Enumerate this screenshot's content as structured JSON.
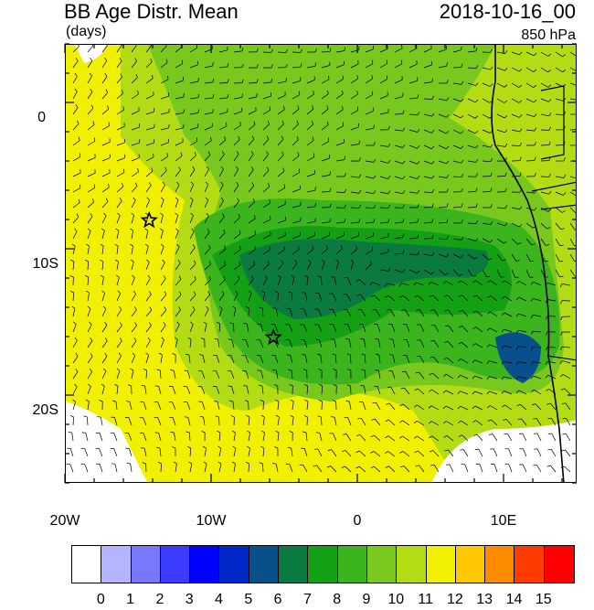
{
  "title": "BB Age Distr. Mean",
  "units": "(days)",
  "datetime": "2018-10-16_00",
  "level": "850 hPa",
  "lat_labels": [
    "0",
    "10S",
    "20S"
  ],
  "lon_labels": [
    "20W",
    "10W",
    "0",
    "10E"
  ],
  "colorbar": {
    "labels": [
      "0",
      "1",
      "2",
      "3",
      "4",
      "5",
      "6",
      "7",
      "8",
      "9",
      "10",
      "11",
      "12",
      "13",
      "14",
      "15"
    ],
    "colors": [
      "#ffffff",
      "#b4b4ff",
      "#7878ff",
      "#3c3cff",
      "#0000ff",
      "#0028c8",
      "#08508c",
      "#0a7a40",
      "#14a014",
      "#3cb41e",
      "#78c81e",
      "#b4dc14",
      "#f0f000",
      "#ffc800",
      "#ff8c00",
      "#ff3c00",
      "#ff0000"
    ]
  },
  "markers": [
    {
      "name": "star-1",
      "lon": -14.3,
      "lat": -8
    },
    {
      "name": "star-2",
      "lon": -5.8,
      "lat": -16
    }
  ],
  "colors": {
    "yellow": "#f0f000",
    "light_green": "#b4dc14",
    "green": "#78c81e",
    "mid_green": "#3cb41e",
    "dark_green": "#14a014",
    "teal": "#0a7a40"
  }
}
